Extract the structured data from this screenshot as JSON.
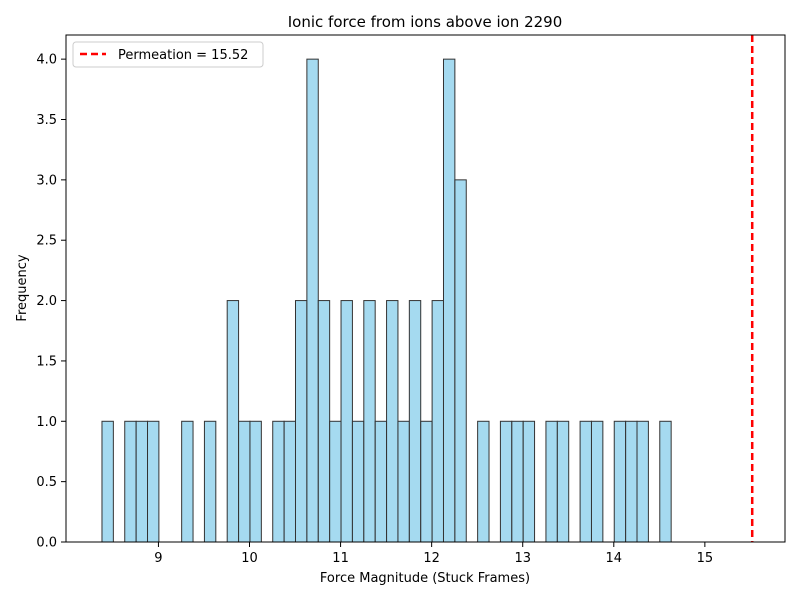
{
  "chart_data": {
    "type": "bar",
    "title": "Ionic force from ions above ion 2290",
    "xlabel": "Force Magnitude (Stuck Frames)",
    "ylabel": "Frequency",
    "xlim": [
      7.985,
      15.88
    ],
    "ylim": [
      0,
      4.2
    ],
    "x_ticks": [
      9,
      10,
      11,
      12,
      13,
      14,
      15
    ],
    "y_ticks": [
      0.0,
      0.5,
      1.0,
      1.5,
      2.0,
      2.5,
      3.0,
      3.5,
      4.0
    ],
    "bin_width": 0.125,
    "bin_starts": [
      8.38,
      8.63,
      8.755,
      8.88,
      9.255,
      9.505,
      9.755,
      9.88,
      10.005,
      10.255,
      10.38,
      10.505,
      10.63,
      10.755,
      10.88,
      11.005,
      11.13,
      11.255,
      11.38,
      11.505,
      11.63,
      11.755,
      11.88,
      12.005,
      12.13,
      12.255,
      12.505,
      12.755,
      12.88,
      13.005,
      13.255,
      13.38,
      13.63,
      13.755,
      14.005,
      14.13,
      14.255,
      14.505
    ],
    "values": [
      1,
      1,
      1,
      1,
      1,
      1,
      2,
      1,
      1,
      1,
      1,
      2,
      4,
      2,
      1,
      2,
      1,
      2,
      1,
      2,
      1,
      2,
      1,
      2,
      4,
      3,
      1,
      1,
      1,
      1,
      1,
      1,
      1,
      1,
      1,
      1,
      1,
      1
    ],
    "bar_color": "#87ceeb",
    "bar_edge_color": "#333333",
    "vline": {
      "x": 15.52,
      "color": "#ff0000",
      "label": "Permeation = 15.52"
    },
    "legend_position": "top-left",
    "grid": false
  }
}
